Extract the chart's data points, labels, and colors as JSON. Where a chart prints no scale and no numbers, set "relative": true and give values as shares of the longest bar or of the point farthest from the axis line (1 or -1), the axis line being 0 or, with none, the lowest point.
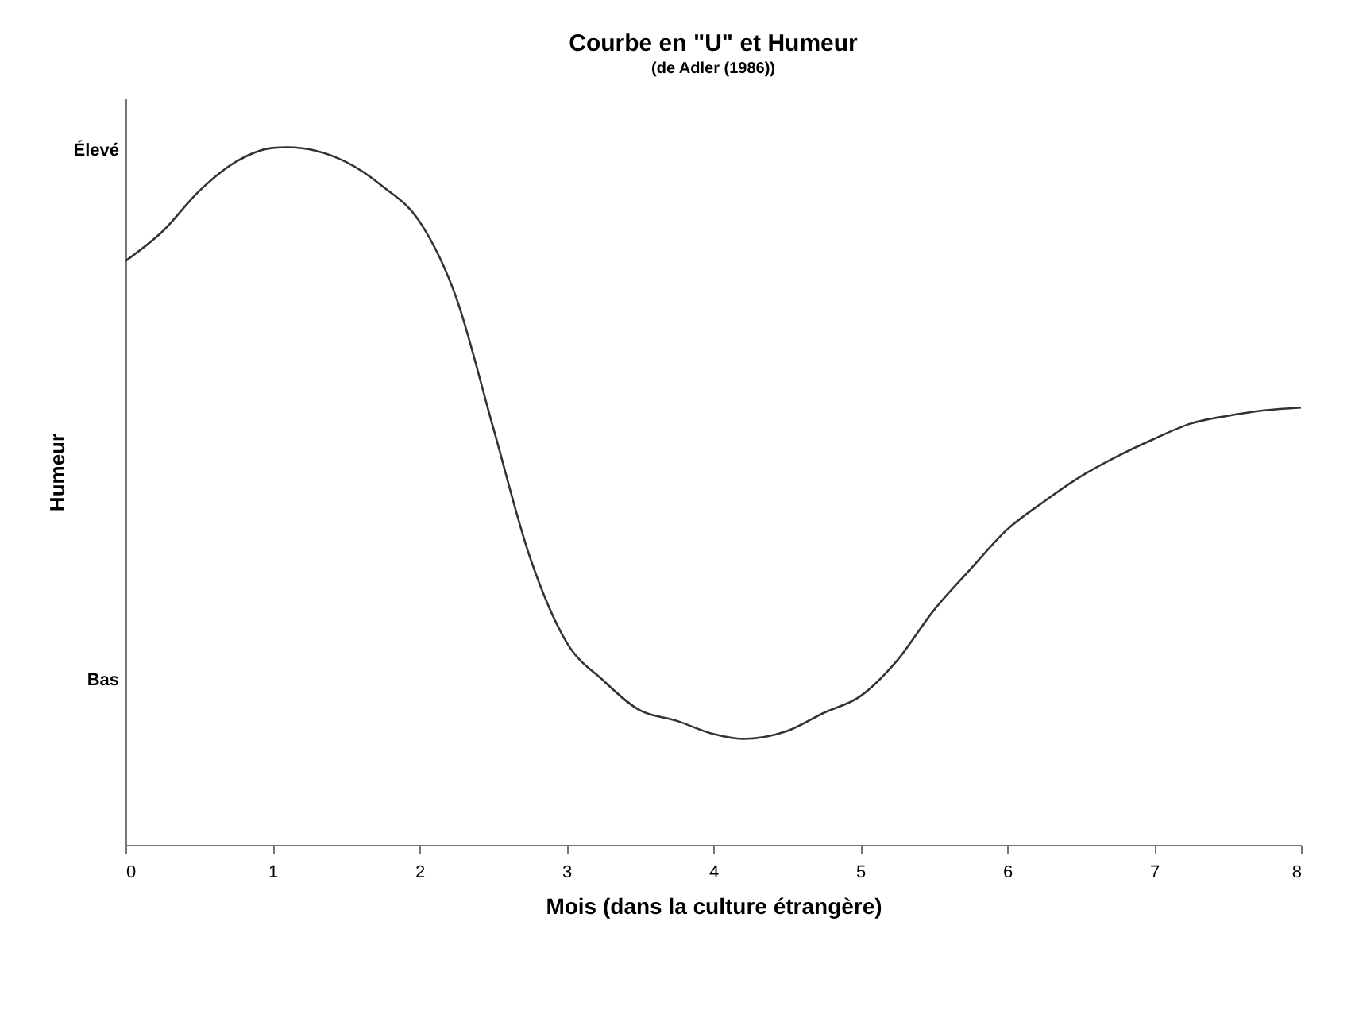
{
  "chart_data": {
    "type": "line",
    "title": "Courbe en \"U\" et Humeur",
    "subtitle": "(de Adler (1986))",
    "xlabel": "Mois (dans la culture étrangère)",
    "ylabel": "Humeur",
    "relative": true,
    "x": [
      0,
      0.25,
      0.5,
      0.75,
      1,
      1.1,
      1.5,
      1.75,
      2,
      2.25,
      2.5,
      2.75,
      3,
      3.25,
      3.5,
      3.75,
      4,
      4.2,
      4.5,
      4.75,
      5,
      5.25,
      5.5,
      5.75,
      6,
      6.25,
      6.5,
      6.75,
      7,
      7.25,
      7.5,
      7.75,
      8
    ],
    "series": [
      {
        "color": "#333333",
        "values": [
          0.837,
          0.879,
          0.937,
          0.979,
          0.999,
          1,
          0.979,
          0.944,
          0.894,
          0.785,
          0.6,
          0.414,
          0.291,
          0.236,
          0.193,
          0.178,
          0.159,
          0.152,
          0.163,
          0.189,
          0.213,
          0.264,
          0.336,
          0.395,
          0.452,
          0.492,
          0.528,
          0.557,
          0.582,
          0.604,
          0.615,
          0.623,
          0.627
        ]
      }
    ],
    "xlim": [
      0,
      8
    ],
    "xticks": [
      0,
      1,
      2,
      3,
      4,
      5,
      6,
      7,
      8
    ],
    "annotations": [
      "Élevé",
      "Bas"
    ]
  }
}
